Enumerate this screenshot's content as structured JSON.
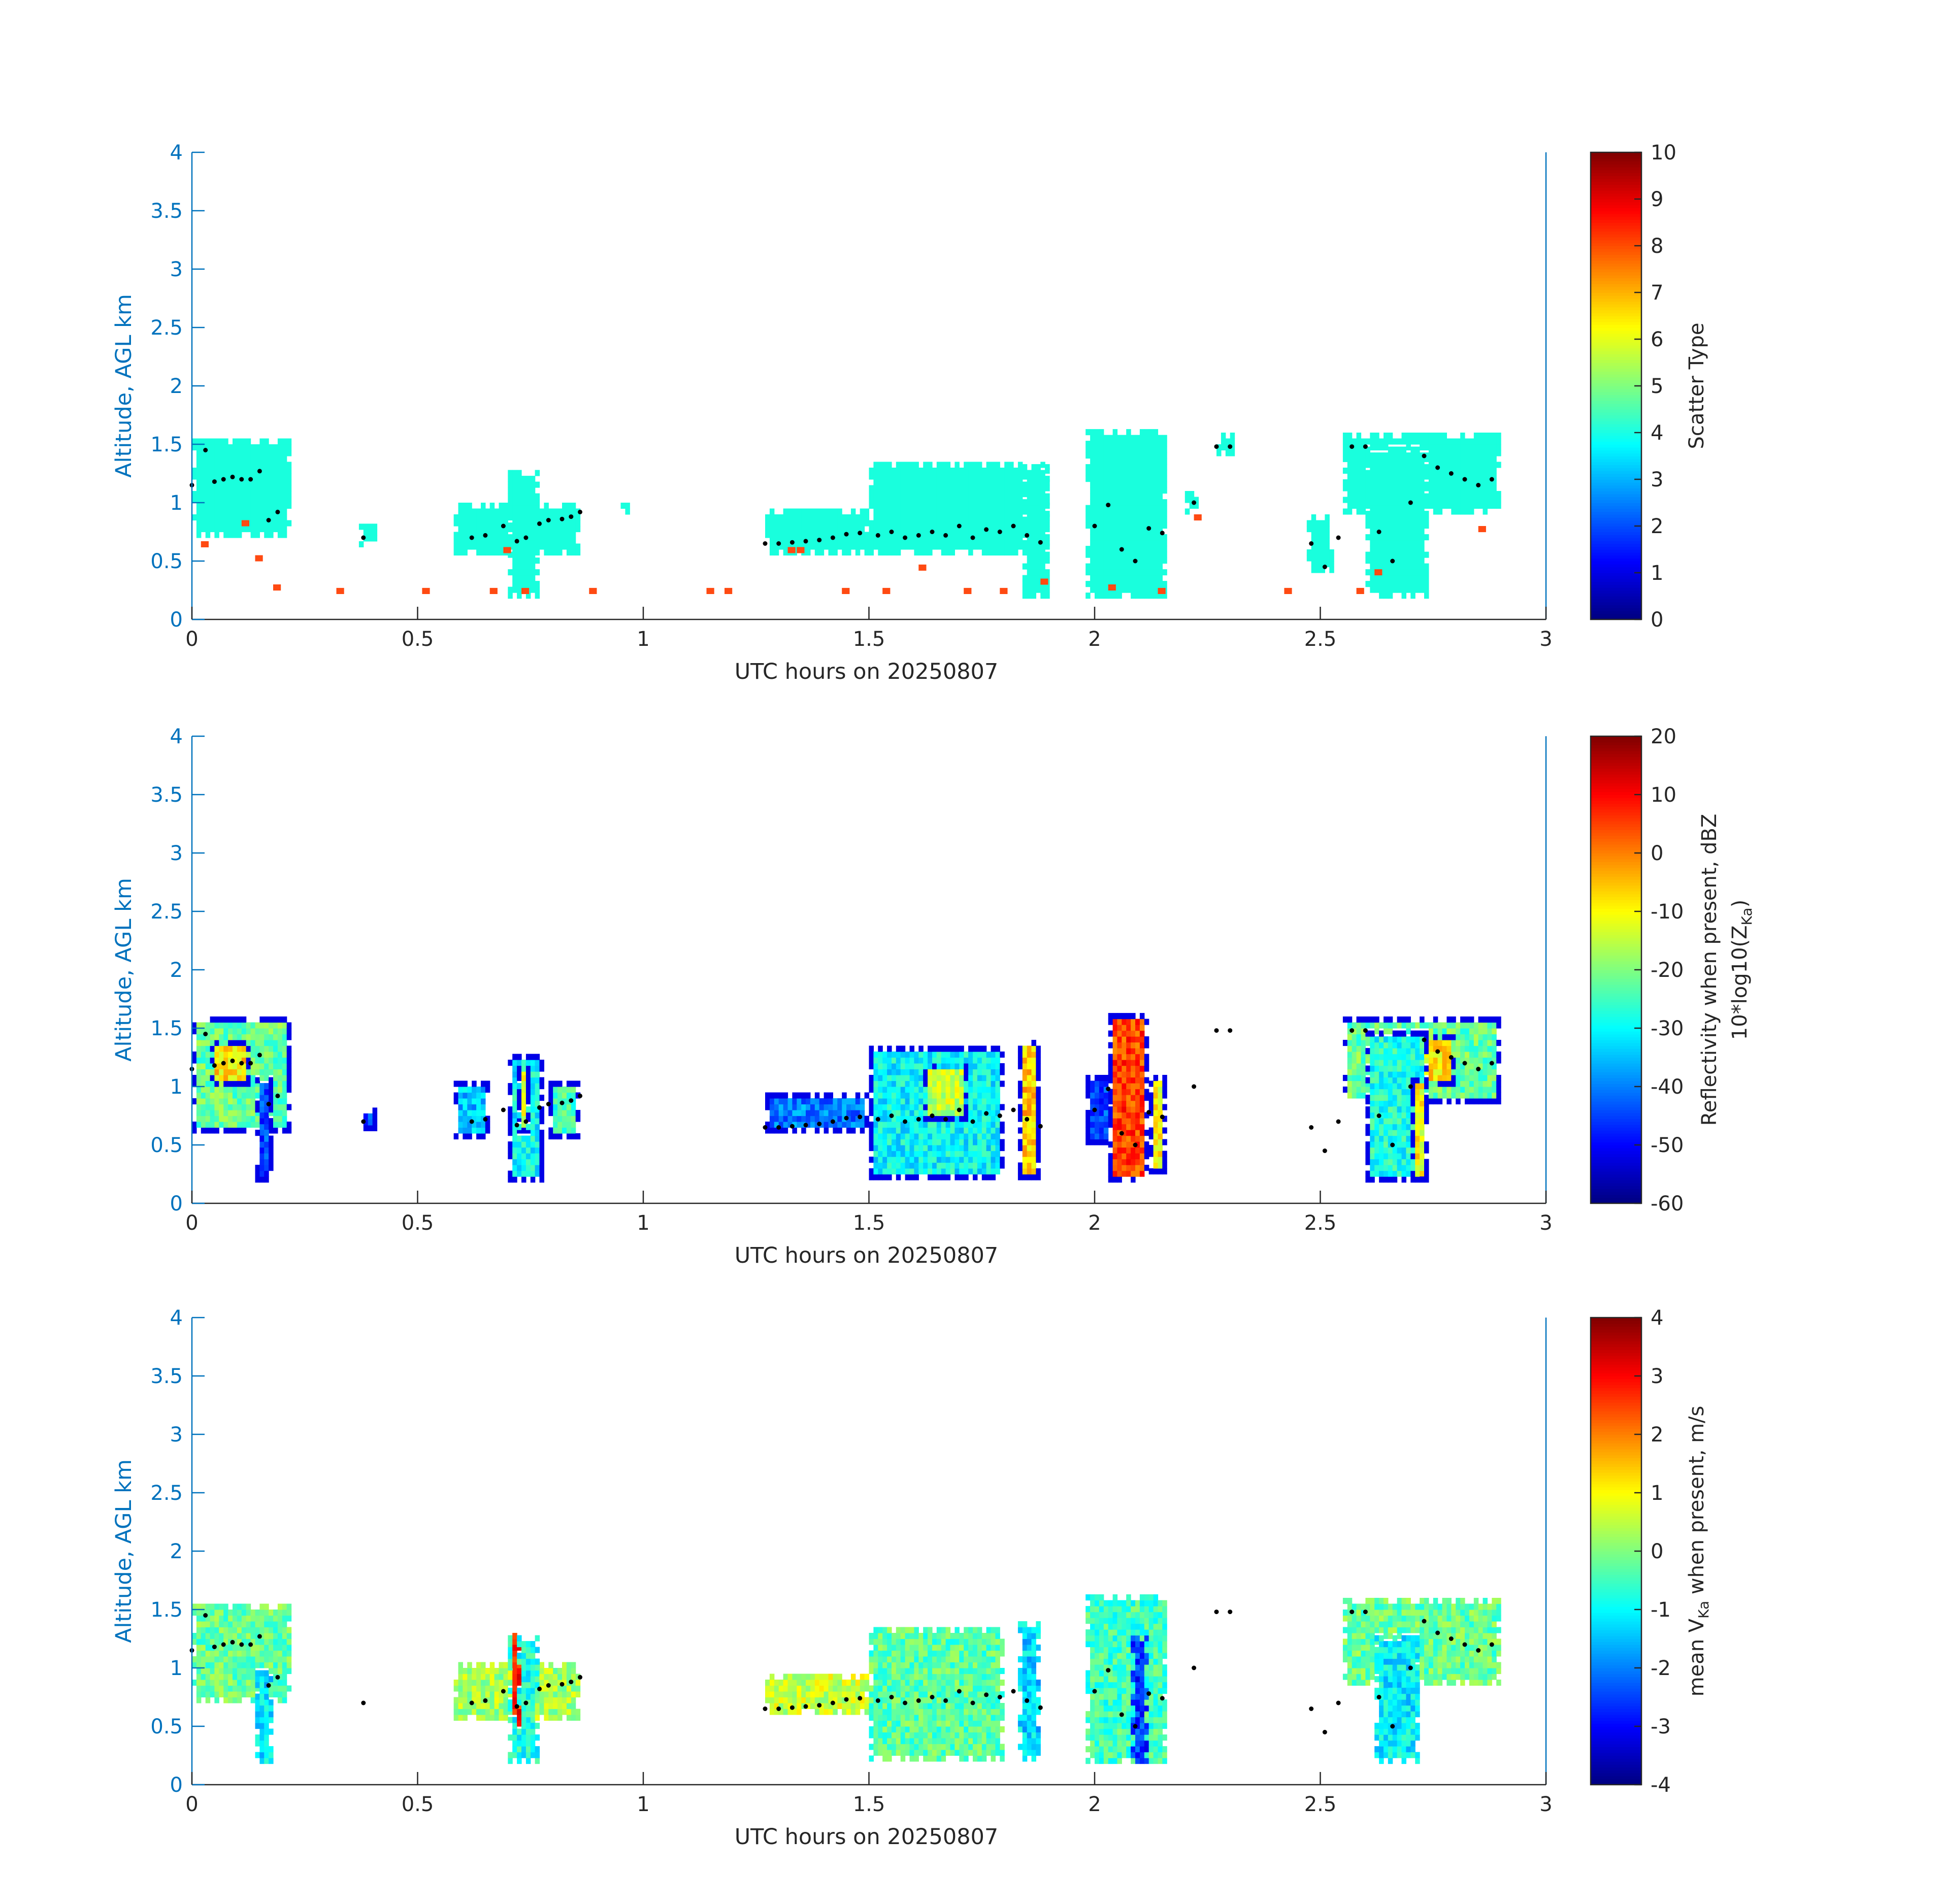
{
  "colors": {
    "axis": "#0072BD",
    "colorbar_axis": "#262626",
    "scatter_fill": "#19FFDD",
    "scatter_low": "#FF4A12",
    "cloud_base_marker": "#000000"
  },
  "xaxis_label": "UTC hours on 20250807",
  "yaxis_label": "Altitude, AGL km",
  "chart_data": [
    {
      "type": "heatmap",
      "panel": "scatter-type",
      "xlabel": "UTC hours on 20250807",
      "ylabel": "Altitude, AGL km",
      "xlim": [
        0,
        3
      ],
      "ylim": [
        0,
        4
      ],
      "xticks": [
        0,
        0.5,
        1,
        1.5,
        2,
        2.5,
        3
      ],
      "xticklabels": [
        "0",
        "0.5",
        "1",
        "1.5",
        "2",
        "2.5",
        "3"
      ],
      "yticks": [
        0,
        0.5,
        1,
        1.5,
        2,
        2.5,
        3,
        3.5,
        4
      ],
      "yticklabels": [
        "0",
        "0.5",
        "1",
        "1.5",
        "2",
        "2.5",
        "3",
        "3.5",
        "4"
      ],
      "colorbar": {
        "label": "Scatter Type",
        "colormap": "jet",
        "range": [
          0,
          10
        ],
        "ticks": [
          0,
          1,
          2,
          3,
          4,
          5,
          6,
          7,
          8,
          9,
          10
        ],
        "ticklabels": [
          "0",
          "1",
          "2",
          "3",
          "4",
          "5",
          "6",
          "7",
          "8",
          "9",
          "10"
        ]
      },
      "cloud_regions": [
        {
          "x": [
            0.0,
            0.22
          ],
          "y": [
            0.7,
            1.55
          ],
          "value": 4
        },
        {
          "x": [
            0.37,
            0.41
          ],
          "y": [
            0.62,
            0.82
          ],
          "value": 4
        },
        {
          "x": [
            0.58,
            0.86
          ],
          "y": [
            0.55,
            1.0
          ],
          "value": 4
        },
        {
          "x": [
            0.7,
            0.77
          ],
          "y": [
            0.18,
            1.3
          ],
          "value": 4
        },
        {
          "x": [
            0.95,
            0.97
          ],
          "y": [
            0.9,
            1.0
          ],
          "value": 4
        },
        {
          "x": [
            1.27,
            1.5
          ],
          "y": [
            0.55,
            0.93
          ],
          "value": 4
        },
        {
          "x": [
            1.5,
            1.9
          ],
          "y": [
            0.55,
            1.35
          ],
          "value": 4
        },
        {
          "x": [
            1.84,
            1.9
          ],
          "y": [
            0.18,
            1.35
          ],
          "value": 4
        },
        {
          "x": [
            1.98,
            2.16
          ],
          "y": [
            0.18,
            1.65
          ],
          "value": 4
        },
        {
          "x": [
            2.2,
            2.23
          ],
          "y": [
            0.9,
            1.1
          ],
          "value": 4
        },
        {
          "x": [
            2.27,
            2.31
          ],
          "y": [
            1.4,
            1.6
          ],
          "value": 4
        },
        {
          "x": [
            2.47,
            2.53
          ],
          "y": [
            0.4,
            0.9
          ],
          "value": 4
        },
        {
          "x": [
            2.55,
            2.9
          ],
          "y": [
            0.9,
            1.6
          ],
          "value": 4
        },
        {
          "x": [
            2.6,
            2.74
          ],
          "y": [
            0.18,
            1.5
          ],
          "value": 4
        }
      ],
      "low_values": [
        {
          "x": 0.02,
          "y": 0.62,
          "value": 8
        },
        {
          "x": 0.11,
          "y": 0.8,
          "value": 8
        },
        {
          "x": 0.14,
          "y": 0.5,
          "value": 8
        },
        {
          "x": 0.18,
          "y": 0.25,
          "value": 8
        },
        {
          "x": 0.32,
          "y": 0.22,
          "value": 8
        },
        {
          "x": 0.51,
          "y": 0.22,
          "value": 8
        },
        {
          "x": 0.66,
          "y": 0.22,
          "value": 8
        },
        {
          "x": 0.69,
          "y": 0.57,
          "value": 8
        },
        {
          "x": 0.73,
          "y": 0.22,
          "value": 8
        },
        {
          "x": 0.88,
          "y": 0.22,
          "value": 8
        },
        {
          "x": 1.14,
          "y": 0.22,
          "value": 8
        },
        {
          "x": 1.18,
          "y": 0.22,
          "value": 8
        },
        {
          "x": 1.32,
          "y": 0.57,
          "value": 8
        },
        {
          "x": 1.34,
          "y": 0.57,
          "value": 8
        },
        {
          "x": 1.44,
          "y": 0.22,
          "value": 8
        },
        {
          "x": 1.53,
          "y": 0.22,
          "value": 8
        },
        {
          "x": 1.61,
          "y": 0.42,
          "value": 8
        },
        {
          "x": 1.71,
          "y": 0.22,
          "value": 8
        },
        {
          "x": 1.79,
          "y": 0.22,
          "value": 8
        },
        {
          "x": 1.88,
          "y": 0.3,
          "value": 8
        },
        {
          "x": 2.03,
          "y": 0.25,
          "value": 8
        },
        {
          "x": 2.14,
          "y": 0.22,
          "value": 8
        },
        {
          "x": 2.22,
          "y": 0.85,
          "value": 8
        },
        {
          "x": 2.42,
          "y": 0.22,
          "value": 8
        },
        {
          "x": 2.58,
          "y": 0.22,
          "value": 8
        },
        {
          "x": 2.62,
          "y": 0.38,
          "value": 8
        },
        {
          "x": 2.85,
          "y": 0.75,
          "value": 8
        }
      ]
    },
    {
      "type": "heatmap",
      "panel": "reflectivity",
      "xlabel": "UTC hours on 20250807",
      "ylabel": "Altitude, AGL km",
      "xlim": [
        0,
        3
      ],
      "ylim": [
        0,
        4
      ],
      "xticks": [
        0,
        0.5,
        1,
        1.5,
        2,
        2.5,
        3
      ],
      "xticklabels": [
        "0",
        "0.5",
        "1",
        "1.5",
        "2",
        "2.5",
        "3"
      ],
      "yticks": [
        0,
        0.5,
        1,
        1.5,
        2,
        2.5,
        3,
        3.5,
        4
      ],
      "yticklabels": [
        "0",
        "0.5",
        "1",
        "1.5",
        "2",
        "2.5",
        "3",
        "3.5",
        "4"
      ],
      "colorbar": {
        "label_line1": "Reflectivity when present, dBZ",
        "label_line2_main": "10*log10(Z",
        "label_line2_sub": "Ka",
        "label_line2_end": ")",
        "colormap": "jet",
        "range": [
          -60,
          20
        ],
        "ticks": [
          -60,
          -50,
          -40,
          -30,
          -20,
          -10,
          0,
          10,
          20
        ],
        "ticklabels": [
          "-60",
          "-50",
          "-40",
          "-30",
          "-20",
          "-10",
          "0",
          "10",
          "20"
        ]
      },
      "cloud_regions": [
        {
          "x": [
            0.0,
            0.22
          ],
          "y": [
            0.6,
            1.6
          ],
          "value": -22
        },
        {
          "x": [
            0.04,
            0.13
          ],
          "y": [
            1.0,
            1.4
          ],
          "value": -8
        },
        {
          "x": [
            0.14,
            0.18
          ],
          "y": [
            0.18,
            1.1
          ],
          "value": -45
        },
        {
          "x": [
            0.37,
            0.41
          ],
          "y": [
            0.62,
            0.82
          ],
          "value": -45
        },
        {
          "x": [
            0.58,
            0.66
          ],
          "y": [
            0.55,
            1.05
          ],
          "value": -35
        },
        {
          "x": [
            0.7,
            0.78
          ],
          "y": [
            0.18,
            1.3
          ],
          "value": -30
        },
        {
          "x": [
            0.72,
            0.75
          ],
          "y": [
            0.6,
            1.2
          ],
          "value": -12
        },
        {
          "x": [
            0.79,
            0.86
          ],
          "y": [
            0.55,
            1.05
          ],
          "value": -25
        },
        {
          "x": [
            1.27,
            1.5
          ],
          "y": [
            0.6,
            0.95
          ],
          "value": -40
        },
        {
          "x": [
            1.5,
            1.8
          ],
          "y": [
            0.2,
            1.35
          ],
          "value": -30
        },
        {
          "x": [
            1.62,
            1.72
          ],
          "y": [
            0.7,
            1.2
          ],
          "value": -15
        },
        {
          "x": [
            1.83,
            1.88
          ],
          "y": [
            0.2,
            1.4
          ],
          "value": -6
        },
        {
          "x": [
            1.98,
            2.04
          ],
          "y": [
            0.5,
            1.1
          ],
          "value": -45
        },
        {
          "x": [
            2.03,
            2.12
          ],
          "y": [
            0.18,
            1.65
          ],
          "value": 5
        },
        {
          "x": [
            2.12,
            2.16
          ],
          "y": [
            0.25,
            1.1
          ],
          "value": -10
        },
        {
          "x": [
            2.55,
            2.9
          ],
          "y": [
            0.85,
            1.6
          ],
          "value": -22
        },
        {
          "x": [
            2.68,
            2.8
          ],
          "y": [
            1.0,
            1.45
          ],
          "value": -8
        },
        {
          "x": [
            2.6,
            2.74
          ],
          "y": [
            0.18,
            1.5
          ],
          "value": -28
        },
        {
          "x": [
            2.7,
            2.74
          ],
          "y": [
            0.18,
            1.1
          ],
          "value": -10
        }
      ]
    },
    {
      "type": "heatmap",
      "panel": "mean-velocity",
      "xlabel": "UTC hours on 20250807",
      "ylabel": "Altitude, AGL km",
      "xlim": [
        0,
        3
      ],
      "ylim": [
        0,
        4
      ],
      "xticks": [
        0,
        0.5,
        1,
        1.5,
        2,
        2.5,
        3
      ],
      "xticklabels": [
        "0",
        "0.5",
        "1",
        "1.5",
        "2",
        "2.5",
        "3"
      ],
      "yticks": [
        0,
        0.5,
        1,
        1.5,
        2,
        2.5,
        3,
        3.5,
        4
      ],
      "yticklabels": [
        "0",
        "0.5",
        "1",
        "1.5",
        "2",
        "2.5",
        "3",
        "3.5",
        "4"
      ],
      "colorbar": {
        "label_main": "mean V",
        "label_sub": "Ka",
        "label_end": " when present, m/s",
        "colormap": "jet",
        "range": [
          -4,
          4
        ],
        "ticks": [
          -4,
          -3,
          -2,
          -1,
          0,
          1,
          2,
          3,
          4
        ],
        "ticklabels": [
          "-4",
          "-3",
          "-2",
          "-1",
          "0",
          "1",
          "2",
          "3",
          "4"
        ]
      },
      "cloud_regions": [
        {
          "x": [
            0.0,
            0.22
          ],
          "y": [
            0.7,
            1.55
          ],
          "value": -0.2
        },
        {
          "x": [
            0.14,
            0.18
          ],
          "y": [
            0.18,
            1.0
          ],
          "value": -1.2
        },
        {
          "x": [
            0.58,
            0.86
          ],
          "y": [
            0.55,
            1.05
          ],
          "value": 0.3
        },
        {
          "x": [
            0.7,
            0.77
          ],
          "y": [
            0.18,
            1.3
          ],
          "value": -0.8
        },
        {
          "x": [
            0.71,
            0.73
          ],
          "y": [
            0.5,
            1.3
          ],
          "value": 2.8
        },
        {
          "x": [
            1.27,
            1.5
          ],
          "y": [
            0.6,
            0.95
          ],
          "value": 0.6
        },
        {
          "x": [
            1.5,
            1.8
          ],
          "y": [
            0.2,
            1.35
          ],
          "value": -0.3
        },
        {
          "x": [
            1.83,
            1.88
          ],
          "y": [
            0.2,
            1.4
          ],
          "value": -1.3
        },
        {
          "x": [
            1.98,
            2.16
          ],
          "y": [
            0.18,
            1.65
          ],
          "value": -0.5
        },
        {
          "x": [
            2.08,
            2.12
          ],
          "y": [
            0.18,
            1.3
          ],
          "value": -2.6
        },
        {
          "x": [
            2.55,
            2.9
          ],
          "y": [
            0.85,
            1.6
          ],
          "value": -0.2
        },
        {
          "x": [
            2.62,
            2.72
          ],
          "y": [
            0.18,
            1.3
          ],
          "value": -1.1
        }
      ]
    }
  ],
  "cloud_base_points": {
    "x": [
      0.0,
      0.03,
      0.05,
      0.07,
      0.09,
      0.11,
      0.13,
      0.15,
      0.17,
      0.19,
      0.38,
      0.62,
      0.65,
      0.69,
      0.72,
      0.74,
      0.77,
      0.79,
      0.82,
      0.84,
      0.86,
      1.27,
      1.3,
      1.33,
      1.36,
      1.39,
      1.42,
      1.45,
      1.48,
      1.52,
      1.55,
      1.58,
      1.61,
      1.64,
      1.67,
      1.7,
      1.73,
      1.76,
      1.79,
      1.82,
      1.85,
      1.88,
      2.0,
      2.03,
      2.06,
      2.09,
      2.12,
      2.15,
      2.22,
      2.27,
      2.3,
      2.48,
      2.51,
      2.54,
      2.57,
      2.6,
      2.63,
      2.66,
      2.7,
      2.73,
      2.76,
      2.79,
      2.82,
      2.85,
      2.88
    ],
    "y": [
      1.15,
      1.45,
      1.18,
      1.2,
      1.22,
      1.2,
      1.2,
      1.27,
      0.85,
      0.92,
      0.7,
      0.7,
      0.72,
      0.8,
      0.67,
      0.7,
      0.82,
      0.85,
      0.86,
      0.88,
      0.92,
      0.65,
      0.65,
      0.66,
      0.67,
      0.68,
      0.7,
      0.73,
      0.74,
      0.72,
      0.75,
      0.7,
      0.72,
      0.75,
      0.72,
      0.8,
      0.7,
      0.77,
      0.75,
      0.8,
      0.72,
      0.66,
      0.8,
      0.98,
      0.6,
      0.5,
      0.78,
      0.74,
      1.0,
      1.48,
      1.48,
      0.65,
      0.45,
      0.7,
      1.48,
      1.48,
      0.75,
      0.5,
      1.0,
      1.4,
      1.3,
      1.25,
      1.2,
      1.15,
      1.2
    ]
  }
}
